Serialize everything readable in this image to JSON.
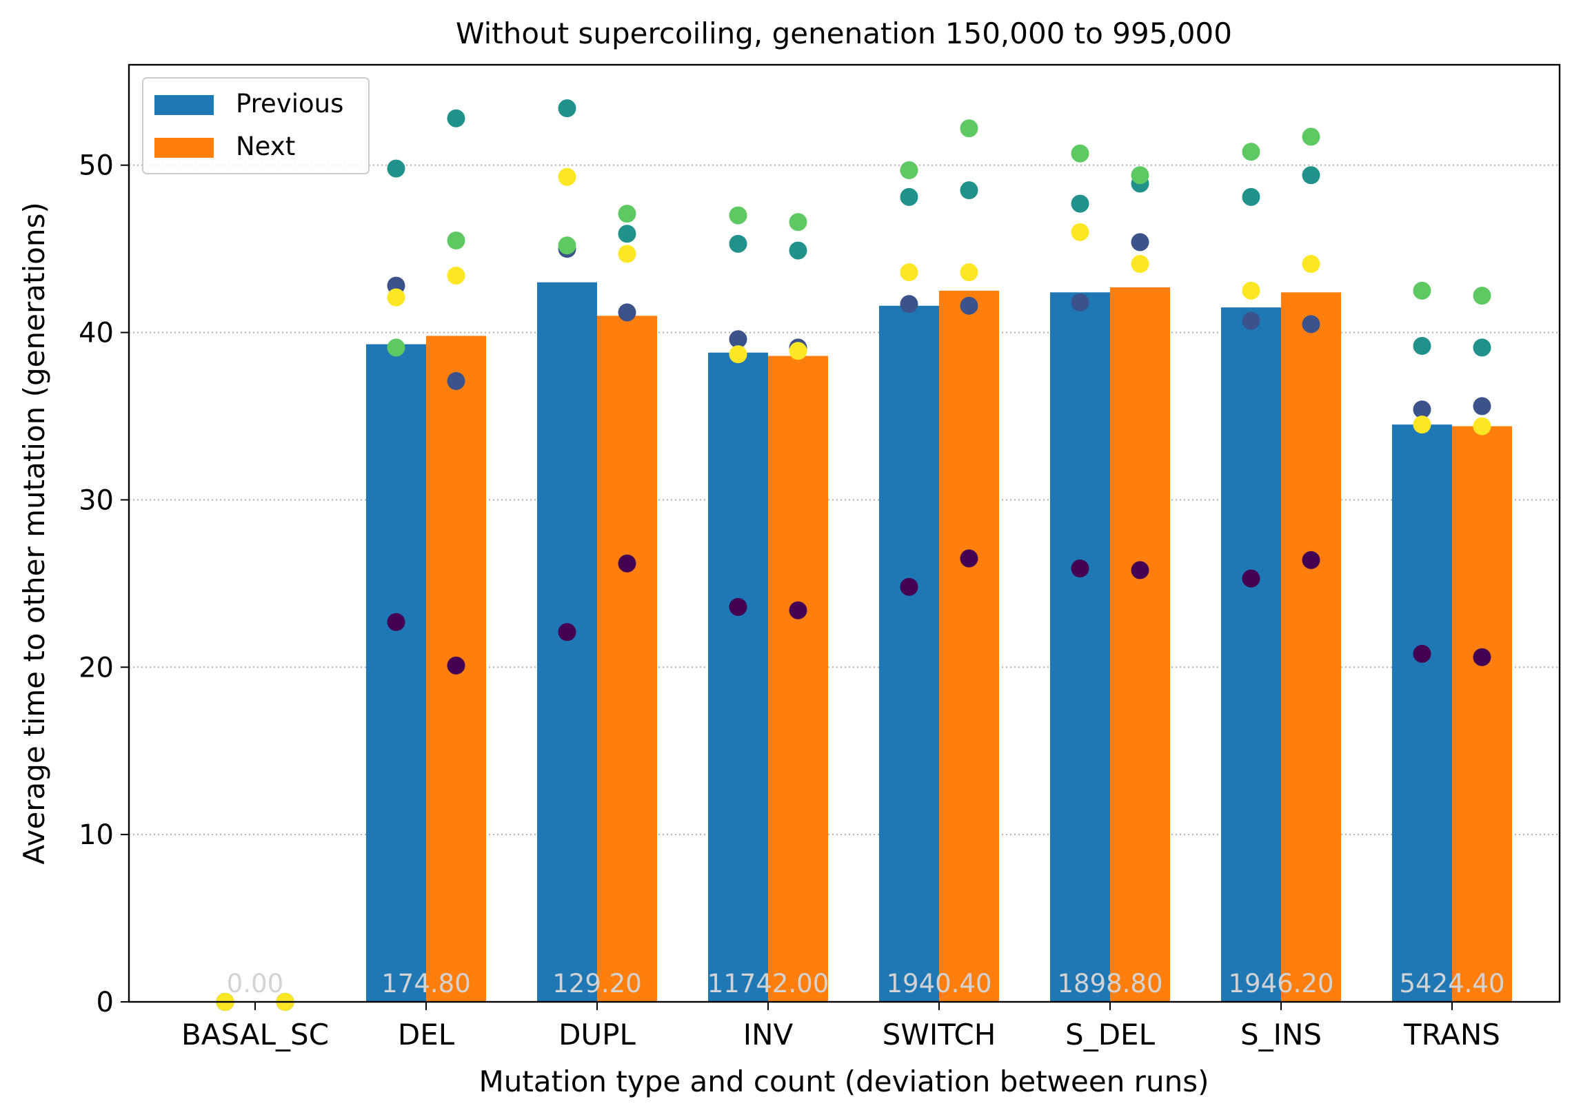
{
  "chart_data": {
    "type": "bar",
    "title": "Without supercoiling, genenation 150,000 to 995,000",
    "xlabel": "Mutation type and count (deviation between runs)",
    "ylabel": "Average time to other mutation (generations)",
    "ylim": [
      0,
      56
    ],
    "yticks": [
      0,
      10,
      20,
      30,
      40,
      50
    ],
    "grid": "horizontal dotted",
    "legend_position": "top-left",
    "categories": [
      "BASAL_SC",
      "DEL",
      "DUPL",
      "INV",
      "SWITCH",
      "S_DEL",
      "S_INS",
      "TRANS"
    ],
    "count_labels": [
      "0.00",
      "174.80",
      "129.20",
      "11742.00",
      "1940.40",
      "1898.80",
      "1946.20",
      "5424.40"
    ],
    "series": [
      {
        "name": "Previous",
        "color": "#1f77b4",
        "values": [
          0,
          39.3,
          43.0,
          38.8,
          41.6,
          42.4,
          41.5,
          34.5
        ]
      },
      {
        "name": "Next",
        "color": "#ff7f0e",
        "values": [
          0,
          39.8,
          41.0,
          38.6,
          42.5,
          42.7,
          42.4,
          34.4
        ]
      }
    ],
    "run_colors": [
      "#440154",
      "#3b528b",
      "#21918c",
      "#5ec962",
      "#fde725"
    ],
    "runs_previous": [
      [
        0,
        0,
        0,
        0,
        0
      ],
      [
        22.7,
        42.8,
        49.8,
        39.1,
        42.1
      ],
      [
        22.1,
        45.0,
        53.4,
        45.2,
        49.3
      ],
      [
        23.6,
        39.6,
        45.3,
        47.0,
        38.7
      ],
      [
        24.8,
        41.7,
        48.1,
        49.7,
        43.6
      ],
      [
        25.9,
        41.8,
        47.7,
        50.7,
        46.0
      ],
      [
        25.3,
        40.7,
        48.1,
        50.8,
        42.5
      ],
      [
        20.8,
        35.4,
        39.2,
        42.5,
        34.5
      ]
    ],
    "runs_next": [
      [
        0,
        0,
        0,
        0,
        0
      ],
      [
        20.1,
        37.1,
        52.8,
        45.5,
        43.4
      ],
      [
        26.2,
        41.2,
        45.9,
        47.1,
        44.7
      ],
      [
        23.4,
        39.1,
        44.9,
        46.6,
        38.9
      ],
      [
        26.5,
        41.6,
        48.5,
        52.2,
        43.6
      ],
      [
        25.8,
        45.4,
        48.9,
        49.4,
        44.1
      ],
      [
        26.4,
        40.5,
        49.4,
        51.7,
        44.1
      ],
      [
        20.6,
        35.6,
        39.1,
        42.2,
        34.4
      ]
    ]
  }
}
